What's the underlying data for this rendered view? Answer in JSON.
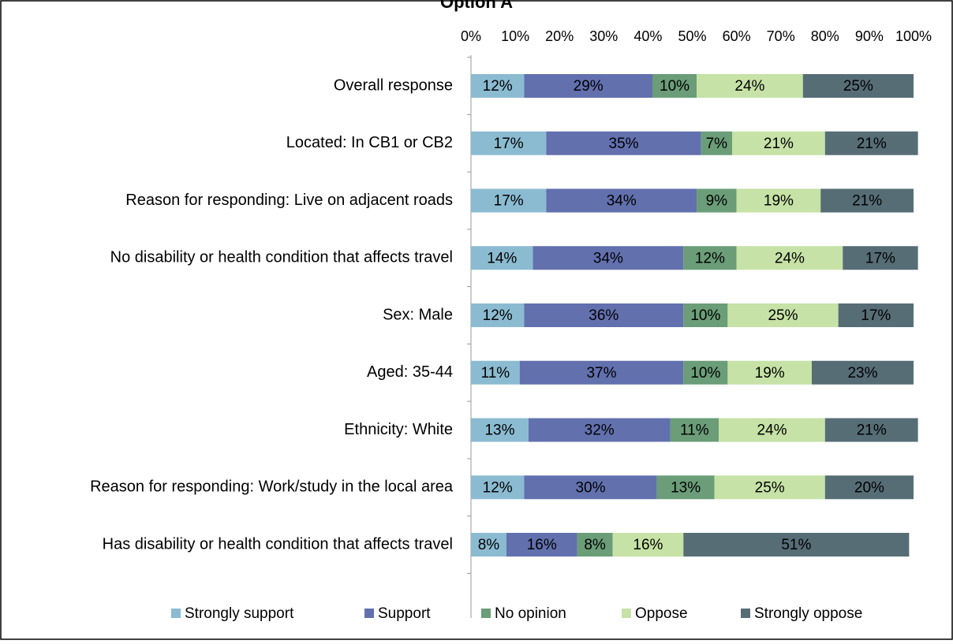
{
  "chart_data": {
    "type": "bar",
    "orientation": "horizontal",
    "stacked": true,
    "percent": true,
    "title": "Option A",
    "xlim": [
      0,
      100
    ],
    "xticks": [
      "0%",
      "10%",
      "20%",
      "30%",
      "40%",
      "50%",
      "60%",
      "70%",
      "80%",
      "90%",
      "100%"
    ],
    "x_axis_position": "top",
    "grid": false,
    "legend_position": "bottom",
    "categories": [
      "Overall response",
      "Located: In CB1 or CB2",
      "Reason for responding: Live on adjacent roads",
      "No disability or health condition that affects travel",
      "Sex: Male",
      "Aged: 35-44",
      "Ethnicity: White",
      "Reason for responding: Work/study in the local area",
      "Has disability or health condition that affects travel"
    ],
    "series": [
      {
        "name": "Strongly support",
        "color": "#8BBBD1",
        "values": [
          12,
          17,
          17,
          14,
          12,
          11,
          13,
          12,
          8
        ]
      },
      {
        "name": "Support",
        "color": "#6270AE",
        "values": [
          29,
          35,
          34,
          34,
          36,
          37,
          32,
          30,
          16
        ]
      },
      {
        "name": "No opinion",
        "color": "#6A9D78",
        "values": [
          10,
          7,
          9,
          12,
          10,
          10,
          11,
          13,
          8
        ]
      },
      {
        "name": "Oppose",
        "color": "#C6E2A6",
        "values": [
          24,
          21,
          19,
          24,
          25,
          19,
          24,
          25,
          16
        ]
      },
      {
        "name": "Strongly oppose",
        "color": "#566D76",
        "values": [
          25,
          21,
          21,
          17,
          17,
          23,
          21,
          20,
          51
        ]
      }
    ]
  }
}
